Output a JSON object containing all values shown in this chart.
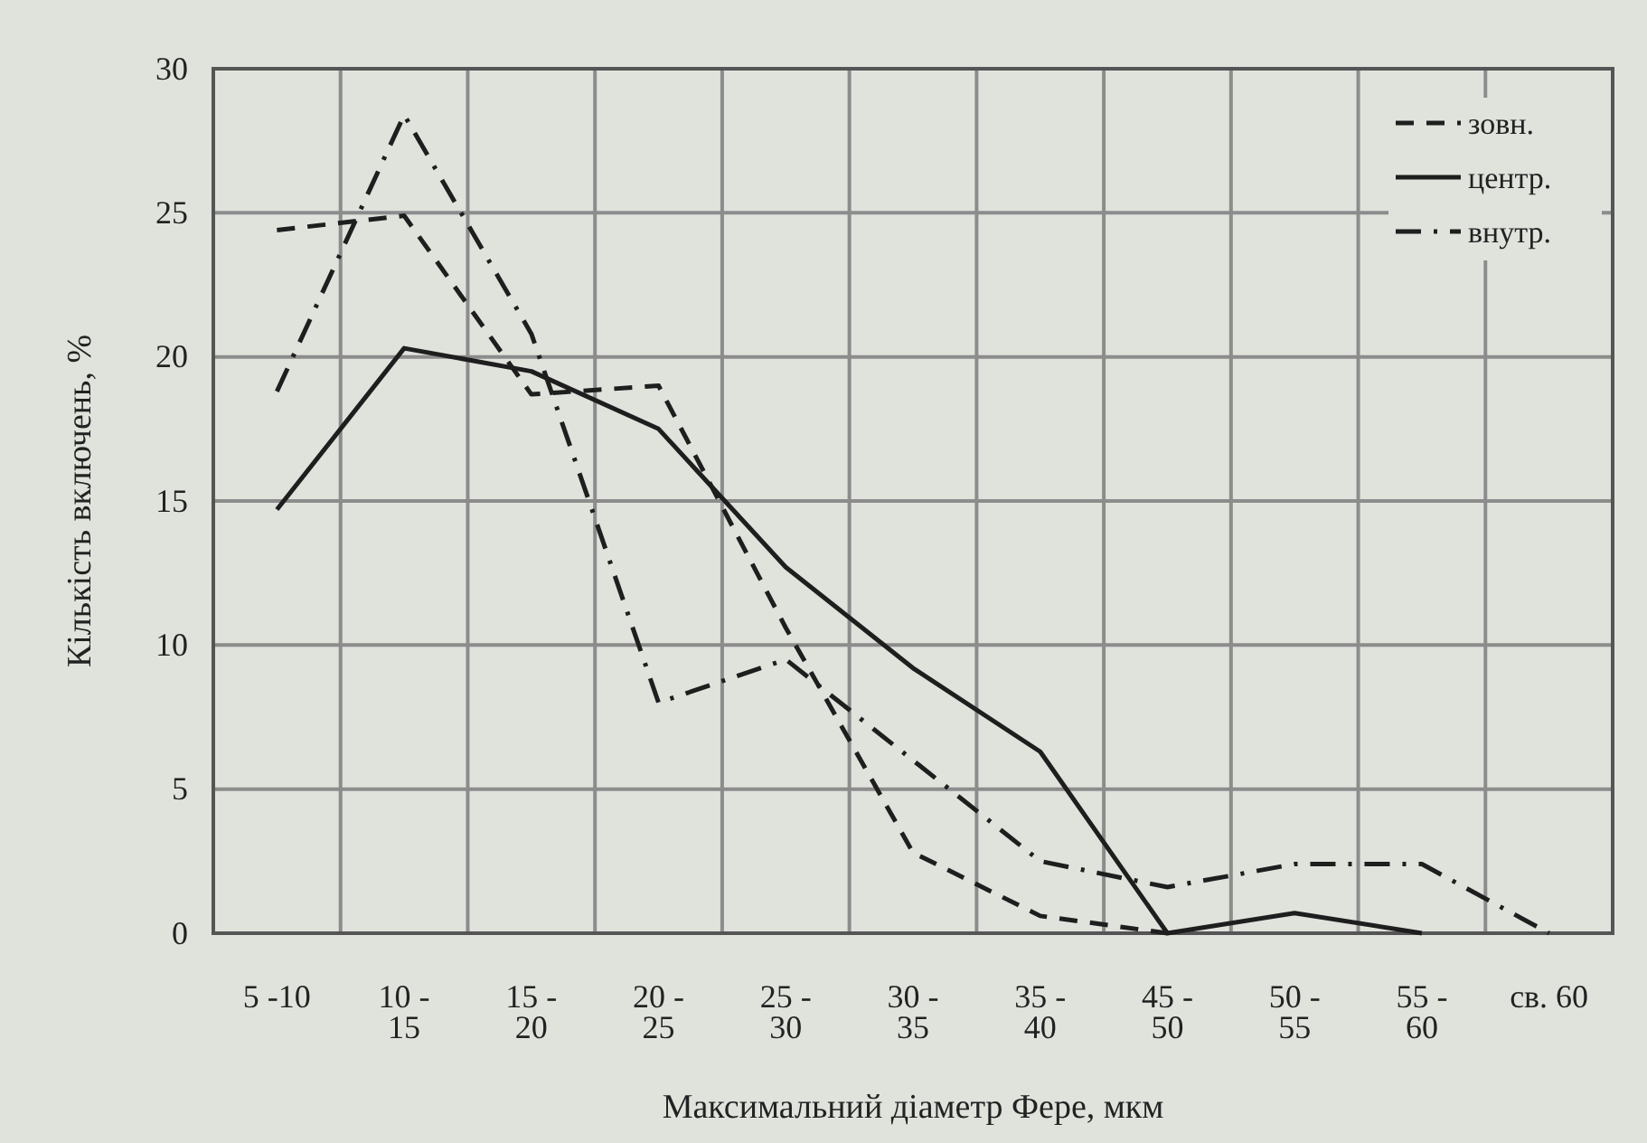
{
  "chart_data": {
    "type": "line",
    "xlabel": "Максимальний діаметр Фере, мкм",
    "ylabel": "Кількість включень, %",
    "categories": [
      "5 -10",
      "10 - 15",
      "15 - 20",
      "20 - 25",
      "25 - 30",
      "30 - 35",
      "35 - 40",
      "45 - 50",
      "50 - 55",
      "55 - 60",
      "св. 60"
    ],
    "series": [
      {
        "name": "зовн.",
        "color": "#1e1e1e",
        "line_style": "dashed",
        "values": [
          24.4,
          24.9,
          18.7,
          19.0,
          10.6,
          2.8,
          0.6,
          0,
          null,
          null,
          null
        ]
      },
      {
        "name": "центр.",
        "color": "#1e1e1e",
        "line_style": "solid",
        "values": [
          14.7,
          20.3,
          19.5,
          17.5,
          12.7,
          9.2,
          6.3,
          0,
          0.7,
          0,
          null
        ]
      },
      {
        "name": "внутр.",
        "color": "#1e1e1e",
        "line_style": "dashdot",
        "values": [
          18.8,
          28.4,
          20.8,
          8.0,
          9.5,
          6.0,
          2.5,
          1.6,
          2.4,
          2.4,
          0
        ]
      }
    ],
    "ylim": [
      0,
      30
    ],
    "yticks": [
      0,
      5,
      10,
      15,
      20,
      25,
      30
    ],
    "grid": true,
    "legend": "top right",
    "marker": "none"
  }
}
